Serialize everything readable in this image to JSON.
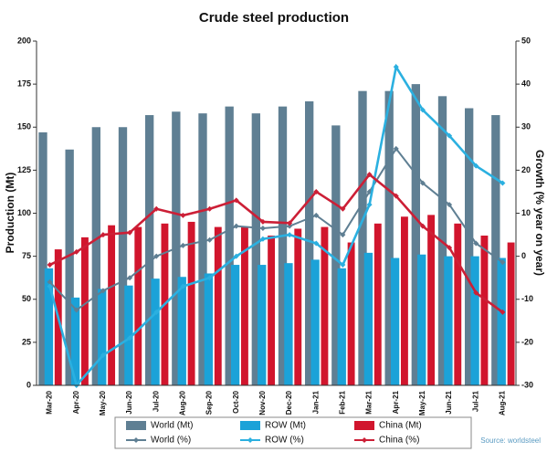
{
  "chart_data": {
    "type": "combo",
    "title": "Crude steel production",
    "y_label": "Production (Mt)",
    "y2_label": "Growth (% year on year)",
    "source": "Source: worldsteel",
    "categories": [
      "Mar-20",
      "Apr-20",
      "May-20",
      "Jun-20",
      "Jul-20",
      "Aug-20",
      "Sep-20",
      "Oct-20",
      "Nov-20",
      "Dec-20",
      "Jan-21",
      "Feb-21",
      "Mar-21",
      "Apr-21",
      "May-21",
      "Jun-21",
      "Jul-21",
      "Aug-21"
    ],
    "series": [
      {
        "name": "World (Mt)",
        "type": "bar",
        "color": "#5f7f93",
        "values": [
          147,
          137,
          150,
          150,
          157,
          159,
          158,
          162,
          158,
          162,
          165,
          151,
          171,
          171,
          175,
          168,
          161,
          157
        ]
      },
      {
        "name": "ROW (Mt)",
        "type": "bar",
        "color": "#1ba2d8",
        "values": [
          68,
          51,
          56,
          58,
          62,
          63,
          65,
          70,
          70,
          71,
          73,
          68,
          77,
          74,
          76,
          75,
          75,
          74
        ]
      },
      {
        "name": "China (Mt)",
        "type": "bar",
        "color": "#d1152d",
        "values": [
          79,
          86,
          93,
          92,
          94,
          95,
          92,
          92,
          87,
          91,
          92,
          83,
          94,
          98,
          99,
          94,
          87,
          83
        ]
      },
      {
        "name": "World (%)",
        "type": "line",
        "axis": "y2",
        "color": "#5f7f93",
        "values": [
          -6,
          -12.5,
          -8,
          -5,
          0,
          2.5,
          3.8,
          7,
          6.5,
          7,
          9.5,
          5,
          15,
          25,
          17,
          12,
          3,
          -1.4
        ]
      },
      {
        "name": "ROW (%)",
        "type": "line",
        "axis": "y2",
        "color": "#2bb0e0",
        "values": [
          -7,
          -30,
          -23,
          -19,
          -13,
          -7,
          -5,
          0,
          4,
          5,
          3,
          -2,
          12,
          44,
          34,
          28,
          21,
          17
        ]
      },
      {
        "name": "China (%)",
        "type": "line",
        "axis": "y2",
        "color": "#cc1f36",
        "values": [
          -2,
          1,
          5,
          5.5,
          11,
          9.5,
          11,
          13,
          8,
          7.7,
          15,
          11,
          19,
          14,
          7,
          2,
          -8.5,
          -13
        ]
      }
    ],
    "ylim": [
      0,
      200
    ],
    "yticks": [
      0,
      25,
      50,
      75,
      100,
      125,
      150,
      175,
      200
    ],
    "y2lim": [
      -30,
      50
    ],
    "y2ticks": [
      -30,
      -20,
      -10,
      0,
      10,
      20,
      30,
      40,
      50
    ],
    "grid": false
  }
}
